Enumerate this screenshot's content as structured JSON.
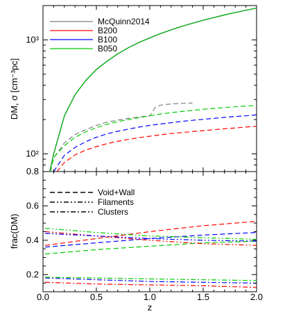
{
  "chart_data": [
    {
      "panel": "top",
      "type": "line",
      "xlabel": "z",
      "ylabel": "DM, σ [cm⁻³pc]",
      "xlim": [
        0,
        2.0
      ],
      "ylim": [
        70,
        2000
      ],
      "yscale": "log",
      "yticks": [
        {
          "value": 100,
          "label": "10²"
        },
        {
          "value": 1000,
          "label": "10³"
        }
      ],
      "grid": false,
      "legend_position": "top-left",
      "legend": [
        {
          "name": "McQuinn2014",
          "color": "#808080"
        },
        {
          "name": "B200",
          "color": "#ff0000"
        },
        {
          "name": "B100",
          "color": "#0000ff"
        },
        {
          "name": "B050",
          "color": "#00cc00"
        }
      ],
      "series": [
        {
          "name": "McQuinn2014",
          "kind": "DM",
          "style": "solid",
          "color": "#808080",
          "x": [
            0.06,
            0.1,
            0.2,
            0.3,
            0.4,
            0.5,
            0.6,
            0.7,
            0.8,
            0.9,
            1.0,
            1.1,
            1.2,
            1.3,
            1.4,
            1.5,
            1.6,
            1.7,
            1.8,
            1.9,
            2.0
          ],
          "y": [
            68,
            100,
            215,
            330,
            440,
            550,
            650,
            755,
            855,
            950,
            1040,
            1135,
            1225,
            1315,
            1400,
            1485,
            1570,
            1655,
            1735,
            1820,
            1900
          ]
        },
        {
          "name": "B200",
          "kind": "DM",
          "style": "solid",
          "color": "#ff0000",
          "x": [
            0.06,
            0.1,
            0.2,
            0.3,
            0.4,
            0.5,
            0.6,
            0.7,
            0.8,
            0.9,
            1.0,
            1.1,
            1.2,
            1.3,
            1.4,
            1.5,
            1.6,
            1.7,
            1.8,
            1.9,
            2.0
          ],
          "y": [
            68,
            100,
            215,
            330,
            440,
            550,
            650,
            755,
            855,
            950,
            1040,
            1135,
            1225,
            1315,
            1400,
            1485,
            1570,
            1655,
            1735,
            1820,
            1900
          ]
        },
        {
          "name": "B100",
          "kind": "DM",
          "style": "solid",
          "color": "#0000ff",
          "x": [
            0.06,
            0.1,
            0.2,
            0.3,
            0.4,
            0.5,
            0.6,
            0.7,
            0.8,
            0.9,
            1.0,
            1.1,
            1.2,
            1.3,
            1.4,
            1.5,
            1.6,
            1.7,
            1.8,
            1.9,
            2.0
          ],
          "y": [
            68,
            100,
            215,
            330,
            440,
            550,
            650,
            755,
            855,
            950,
            1040,
            1135,
            1225,
            1315,
            1400,
            1485,
            1570,
            1655,
            1735,
            1820,
            1900
          ]
        },
        {
          "name": "B050",
          "kind": "DM",
          "style": "solid",
          "color": "#00cc00",
          "x": [
            0.06,
            0.1,
            0.2,
            0.3,
            0.4,
            0.5,
            0.6,
            0.7,
            0.8,
            0.9,
            1.0,
            1.1,
            1.2,
            1.3,
            1.4,
            1.5,
            1.6,
            1.7,
            1.8,
            1.9,
            2.0
          ],
          "y": [
            68,
            100,
            215,
            330,
            440,
            550,
            650,
            755,
            855,
            950,
            1040,
            1135,
            1225,
            1315,
            1400,
            1485,
            1570,
            1655,
            1735,
            1820,
            1900
          ]
        },
        {
          "name": "McQuinn2014",
          "kind": "sigma",
          "style": "dashed",
          "color": "#808080",
          "x": [
            0.06,
            0.1,
            0.2,
            0.3,
            0.4,
            0.5,
            0.6,
            0.7,
            0.8,
            0.9,
            1.0,
            1.05,
            1.1,
            1.2,
            1.3,
            1.4
          ],
          "y": [
            70,
            92,
            125,
            148,
            163,
            178,
            190,
            198,
            205,
            211,
            216,
            255,
            268,
            274,
            278,
            279
          ]
        },
        {
          "name": "B200",
          "kind": "sigma",
          "style": "dashed",
          "color": "#ff0000",
          "x": [
            0.13,
            0.2,
            0.3,
            0.4,
            0.5,
            0.6,
            0.7,
            0.8,
            0.9,
            1.0,
            1.1,
            1.2,
            1.3,
            1.4,
            1.5,
            1.6,
            1.7,
            1.8,
            1.9,
            2.0
          ],
          "y": [
            70,
            84,
            98,
            108,
            116,
            123,
            129,
            134,
            139,
            143,
            147,
            151,
            154,
            157,
            160,
            163,
            166,
            169,
            172,
            175
          ]
        },
        {
          "name": "B100",
          "kind": "sigma",
          "style": "dashed",
          "color": "#0000ff",
          "x": [
            0.1,
            0.2,
            0.3,
            0.4,
            0.5,
            0.6,
            0.7,
            0.8,
            0.9,
            1.0,
            1.1,
            1.2,
            1.3,
            1.4,
            1.5,
            1.6,
            1.7,
            1.8,
            1.9,
            2.0
          ],
          "y": [
            70,
            97,
            114,
            128,
            140,
            150,
            158,
            165,
            172,
            178,
            183,
            188,
            193,
            197,
            201,
            205,
            209,
            213,
            216,
            220
          ]
        },
        {
          "name": "B050",
          "kind": "sigma",
          "style": "dashed",
          "color": "#00cc00",
          "x": [
            0.07,
            0.1,
            0.2,
            0.3,
            0.4,
            0.5,
            0.6,
            0.7,
            0.8,
            0.9,
            1.0,
            1.1,
            1.2,
            1.3,
            1.4,
            1.5,
            1.6,
            1.7,
            1.8,
            1.9,
            2.0
          ],
          "y": [
            70,
            93,
            118,
            140,
            156,
            170,
            182,
            192,
            200,
            208,
            216,
            224,
            230,
            236,
            241,
            246,
            251,
            255,
            259,
            263,
            266
          ]
        }
      ]
    },
    {
      "panel": "bottom",
      "type": "line",
      "xlabel": "z",
      "ylabel": "frac(DM)",
      "xlim": [
        0,
        2.0
      ],
      "ylim": [
        0.1,
        0.8
      ],
      "xticks": [
        0,
        0.5,
        1.0,
        1.5,
        2.0
      ],
      "xtick_labels": [
        "0.0",
        "0.5",
        "1.0",
        "1.5",
        "2.0"
      ],
      "yticks": [
        0.2,
        0.4,
        0.6,
        0.8
      ],
      "ytick_labels": [
        "0.2",
        "0.4",
        "0.6",
        "0.8"
      ],
      "grid": false,
      "legend_position": "top-left",
      "legend": [
        {
          "name": "Void+Wall",
          "style": "dashed"
        },
        {
          "name": "Filaments",
          "style": "dashdotdot"
        },
        {
          "name": "Clusters",
          "style": "dashdot"
        }
      ],
      "series": [
        {
          "component": "Void+Wall",
          "color": "#ff0000",
          "style": "dashed",
          "x": [
            0.02,
            0.5,
            1.0,
            1.5,
            2.0
          ],
          "y": [
            0.37,
            0.41,
            0.45,
            0.485,
            0.51
          ]
        },
        {
          "component": "Void+Wall",
          "color": "#0000ff",
          "style": "dashed",
          "x": [
            0.02,
            0.5,
            1.0,
            1.5,
            2.0
          ],
          "y": [
            0.36,
            0.385,
            0.41,
            0.43,
            0.445
          ]
        },
        {
          "component": "Void+Wall",
          "color": "#00cc00",
          "style": "dashed",
          "x": [
            0.02,
            0.5,
            1.0,
            1.5,
            2.0
          ],
          "y": [
            0.32,
            0.345,
            0.365,
            0.385,
            0.395
          ]
        },
        {
          "component": "Filaments",
          "color": "#ff0000",
          "style": "dashdotdot",
          "x": [
            0.02,
            0.5,
            1.0,
            1.5,
            2.0
          ],
          "y": [
            0.45,
            0.425,
            0.4,
            0.38,
            0.37
          ]
        },
        {
          "component": "Filaments",
          "color": "#0000ff",
          "style": "dashdotdot",
          "x": [
            0.02,
            0.5,
            1.0,
            1.5,
            2.0
          ],
          "y": [
            0.44,
            0.425,
            0.41,
            0.4,
            0.395
          ]
        },
        {
          "component": "Filaments",
          "color": "#00cc00",
          "style": "dashdotdot",
          "x": [
            0.02,
            0.5,
            1.0,
            1.5,
            2.0
          ],
          "y": [
            0.47,
            0.445,
            0.425,
            0.415,
            0.405
          ]
        },
        {
          "component": "Clusters",
          "color": "#ff0000",
          "style": "dashdot",
          "x": [
            0.02,
            0.5,
            1.0,
            1.5,
            2.0
          ],
          "y": [
            0.155,
            0.145,
            0.14,
            0.135,
            0.125
          ]
        },
        {
          "component": "Clusters",
          "color": "#0000ff",
          "style": "dashdot",
          "x": [
            0.02,
            0.5,
            1.0,
            1.5,
            2.0
          ],
          "y": [
            0.18,
            0.17,
            0.16,
            0.155,
            0.15
          ]
        },
        {
          "component": "Clusters",
          "color": "#00cc00",
          "style": "dashdot",
          "x": [
            0.02,
            0.5,
            1.0,
            1.5,
            2.0
          ],
          "y": [
            0.185,
            0.18,
            0.175,
            0.17,
            0.165
          ]
        }
      ]
    }
  ]
}
